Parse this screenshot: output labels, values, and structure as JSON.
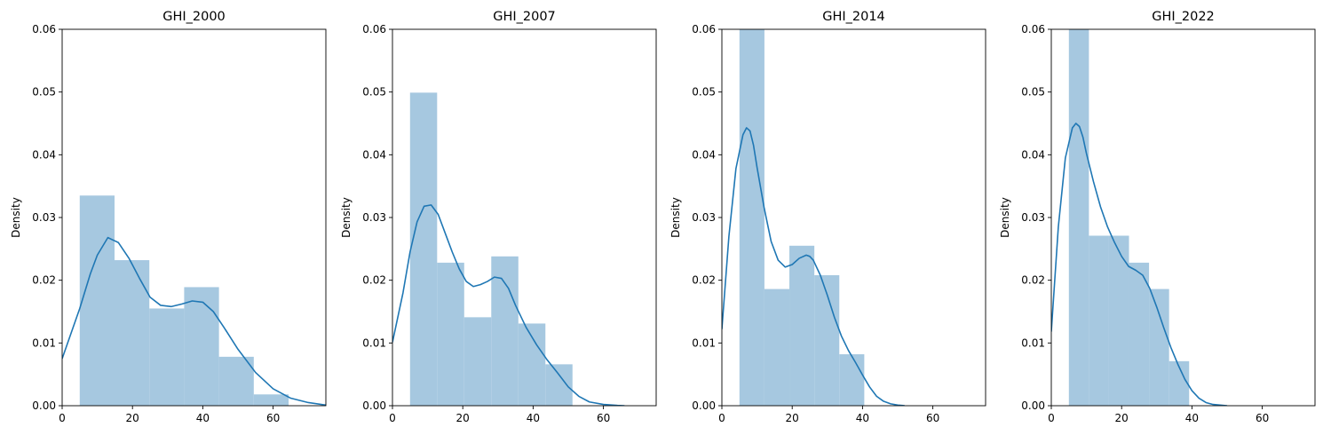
{
  "chart_data": [
    {
      "type": "histogram",
      "title": "GHI_2000",
      "xlabel": "",
      "ylabel": "Density",
      "xlim": [
        0,
        75
      ],
      "ylim": [
        0,
        0.06
      ],
      "xticks": [
        "0",
        "20",
        "40",
        "60"
      ],
      "yticks": [
        "0.00",
        "0.01",
        "0.02",
        "0.03",
        "0.04",
        "0.05",
        "0.06"
      ],
      "bins": [
        {
          "x0": 5.0,
          "x1": 14.9,
          "density": 0.0335
        },
        {
          "x0": 14.9,
          "x1": 24.8,
          "density": 0.0232
        },
        {
          "x0": 24.8,
          "x1": 34.7,
          "density": 0.0155
        },
        {
          "x0": 34.7,
          "x1": 44.6,
          "density": 0.0189
        },
        {
          "x0": 44.6,
          "x1": 54.5,
          "density": 0.0078
        },
        {
          "x0": 54.5,
          "x1": 64.4,
          "density": 0.0018
        }
      ],
      "kde": {
        "x": [
          0,
          5,
          8,
          10,
          13,
          16,
          19,
          22,
          25,
          28,
          31,
          34,
          37,
          40,
          43,
          46,
          50,
          55,
          60,
          65,
          70,
          75
        ],
        "y": [
          0.0075,
          0.0155,
          0.021,
          0.024,
          0.0268,
          0.026,
          0.0235,
          0.0203,
          0.0173,
          0.016,
          0.0158,
          0.0162,
          0.0167,
          0.0165,
          0.015,
          0.0125,
          0.009,
          0.0053,
          0.0027,
          0.0012,
          0.0005,
          0.0001
        ]
      }
    },
    {
      "type": "histogram",
      "title": "GHI_2007",
      "xlabel": "",
      "ylabel": "Density",
      "xlim": [
        0,
        75
      ],
      "ylim": [
        0,
        0.06
      ],
      "xticks": [
        "0",
        "20",
        "40",
        "60"
      ],
      "yticks": [
        "0.00",
        "0.01",
        "0.02",
        "0.03",
        "0.04",
        "0.05",
        "0.06"
      ],
      "bins": [
        {
          "x0": 5.0,
          "x1": 12.7,
          "density": 0.0499
        },
        {
          "x0": 12.7,
          "x1": 20.4,
          "density": 0.0228
        },
        {
          "x0": 20.4,
          "x1": 28.1,
          "density": 0.0141
        },
        {
          "x0": 28.1,
          "x1": 35.8,
          "density": 0.0238
        },
        {
          "x0": 35.8,
          "x1": 43.5,
          "density": 0.0131
        },
        {
          "x0": 43.5,
          "x1": 51.2,
          "density": 0.0066
        }
      ],
      "kde": {
        "x": [
          0,
          3,
          5,
          7,
          9,
          11,
          13,
          15,
          17,
          19,
          21,
          23,
          25,
          27,
          29,
          31,
          33,
          35,
          38,
          41,
          44,
          47,
          50,
          53,
          56,
          60,
          64,
          66
        ],
        "y": [
          0.0101,
          0.018,
          0.0245,
          0.0293,
          0.0318,
          0.032,
          0.0305,
          0.0275,
          0.0245,
          0.0218,
          0.0198,
          0.019,
          0.0193,
          0.0198,
          0.0205,
          0.0203,
          0.0187,
          0.016,
          0.0125,
          0.0097,
          0.0073,
          0.0052,
          0.003,
          0.0015,
          0.0006,
          0.0002,
          5e-05,
          0.0
        ]
      }
    },
    {
      "type": "histogram",
      "title": "GHI_2014",
      "xlabel": "",
      "ylabel": "Density",
      "xlim": [
        0,
        75
      ],
      "ylim": [
        0,
        0.06
      ],
      "xticks": [
        "0",
        "20",
        "40",
        "60"
      ],
      "yticks": [
        "0.00",
        "0.01",
        "0.02",
        "0.03",
        "0.04",
        "0.05",
        "0.06"
      ],
      "bins": [
        {
          "x0": 5.0,
          "x1": 12.1,
          "density": 0.06
        },
        {
          "x0": 12.1,
          "x1": 19.2,
          "density": 0.0186
        },
        {
          "x0": 19.2,
          "x1": 26.3,
          "density": 0.0255
        },
        {
          "x0": 26.3,
          "x1": 33.4,
          "density": 0.0208
        },
        {
          "x0": 33.4,
          "x1": 40.5,
          "density": 0.0082
        }
      ],
      "kde": {
        "x": [
          0,
          2,
          4,
          6,
          7,
          8,
          9,
          10,
          12,
          14,
          16,
          18,
          20,
          22,
          24,
          25,
          26,
          28,
          30,
          32,
          34,
          36,
          38,
          40,
          42,
          44,
          46,
          48,
          50,
          52
        ],
        "y": [
          0.0122,
          0.027,
          0.0378,
          0.0432,
          0.0443,
          0.0438,
          0.0415,
          0.038,
          0.0316,
          0.0262,
          0.0232,
          0.0221,
          0.0225,
          0.0235,
          0.024,
          0.0238,
          0.0232,
          0.0208,
          0.0176,
          0.0141,
          0.0111,
          0.0088,
          0.0069,
          0.0049,
          0.003,
          0.0015,
          0.0007,
          0.0003,
          0.0001,
          0.0
        ]
      }
    },
    {
      "type": "histogram",
      "title": "GHI_2022",
      "xlabel": "",
      "ylabel": "Density",
      "xlim": [
        0,
        75
      ],
      "ylim": [
        0,
        0.06
      ],
      "xticks": [
        "0",
        "20",
        "40",
        "60"
      ],
      "yticks": [
        "0.00",
        "0.01",
        "0.02",
        "0.03",
        "0.04",
        "0.05",
        "0.06"
      ],
      "bins": [
        {
          "x0": 5.0,
          "x1": 10.7,
          "density": 0.06
        },
        {
          "x0": 10.7,
          "x1": 16.4,
          "density": 0.0271
        },
        {
          "x0": 16.4,
          "x1": 22.1,
          "density": 0.0271
        },
        {
          "x0": 22.1,
          "x1": 27.8,
          "density": 0.0228
        },
        {
          "x0": 27.8,
          "x1": 33.5,
          "density": 0.0186
        },
        {
          "x0": 33.5,
          "x1": 39.2,
          "density": 0.0071
        }
      ],
      "kde": {
        "x": [
          0,
          2,
          4,
          6,
          7,
          8,
          9,
          10,
          12,
          14,
          16,
          18,
          20,
          22,
          24,
          26,
          28,
          30,
          32,
          34,
          36,
          38,
          40,
          42,
          44,
          46,
          48,
          50
        ],
        "y": [
          0.0118,
          0.0285,
          0.0395,
          0.0443,
          0.045,
          0.0445,
          0.0428,
          0.0402,
          0.0357,
          0.0317,
          0.0285,
          0.026,
          0.0238,
          0.0222,
          0.0216,
          0.0208,
          0.0187,
          0.0157,
          0.0124,
          0.0093,
          0.0066,
          0.0042,
          0.0024,
          0.0012,
          0.0005,
          0.0002,
          0.0001,
          0.0
        ]
      }
    }
  ],
  "colors": {
    "bar_fill": "#a6c8e0",
    "kde_line": "#1f77b4",
    "axes": "#000000"
  }
}
